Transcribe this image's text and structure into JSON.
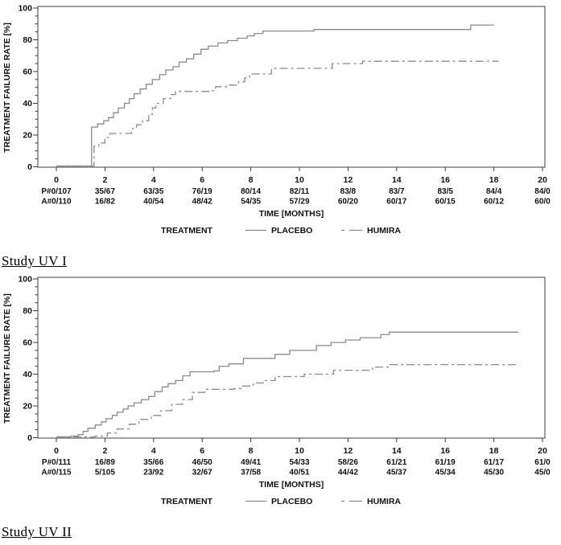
{
  "page": {
    "background": "#ffffff"
  },
  "colors": {
    "curve": "#8a8a8a",
    "axis": "#3c3c3c",
    "text": "#111111"
  },
  "chart_data": [
    {
      "type": "line",
      "subtype": "kaplan-meier-step",
      "caption": "Study UV I",
      "xlabel": "TIME [MONTHS]",
      "ylabel": "TREATMENT FAILURE RATE [%]",
      "xlim": [
        -0.8,
        20.8
      ],
      "ylim": [
        0,
        100
      ],
      "x_ticks": [
        0,
        2,
        4,
        6,
        8,
        10,
        12,
        14,
        16,
        18,
        20
      ],
      "y_ticks": [
        0,
        20,
        40,
        60,
        80,
        100
      ],
      "y_minor_tick_step": 5,
      "grid": false,
      "legend_title": "TREATMENT",
      "legend_position": "bottom",
      "series": [
        {
          "name": "PLACEBO",
          "style": "solid",
          "color": "#8a8a8a",
          "step_points": [
            [
              0,
              0.5
            ],
            [
              1.4,
              0.5
            ],
            [
              1.45,
              25
            ],
            [
              1.7,
              27
            ],
            [
              1.95,
              29
            ],
            [
              2.15,
              31
            ],
            [
              2.35,
              34
            ],
            [
              2.55,
              37
            ],
            [
              2.8,
              40
            ],
            [
              3.0,
              43
            ],
            [
              3.2,
              46
            ],
            [
              3.45,
              49
            ],
            [
              3.7,
              52
            ],
            [
              3.95,
              55
            ],
            [
              4.25,
              58
            ],
            [
              4.5,
              61
            ],
            [
              4.8,
              63
            ],
            [
              5.05,
              66
            ],
            [
              5.35,
              68
            ],
            [
              5.65,
              71
            ],
            [
              5.95,
              74
            ],
            [
              6.25,
              76
            ],
            [
              6.65,
              78
            ],
            [
              7.05,
              79.5
            ],
            [
              7.45,
              81
            ],
            [
              7.85,
              82.5
            ],
            [
              8.15,
              84
            ],
            [
              8.5,
              85.5
            ],
            [
              10.6,
              86.5
            ],
            [
              17.05,
              89.3
            ],
            [
              18.0,
              89.3
            ]
          ]
        },
        {
          "name": "HUMIRA",
          "style": "dash-dot",
          "color": "#8a8a8a",
          "step_points": [
            [
              0,
              0.5
            ],
            [
              1.5,
              0.5
            ],
            [
              1.55,
              13
            ],
            [
              1.75,
              15
            ],
            [
              2.0,
              18.5
            ],
            [
              2.2,
              21
            ],
            [
              2.95,
              21
            ],
            [
              3.1,
              24
            ],
            [
              3.3,
              26.5
            ],
            [
              3.55,
              29
            ],
            [
              3.8,
              33
            ],
            [
              3.95,
              37
            ],
            [
              4.1,
              40
            ],
            [
              4.4,
              43
            ],
            [
              4.7,
              45.5
            ],
            [
              4.9,
              47.5
            ],
            [
              6.3,
              48
            ],
            [
              6.55,
              50.5
            ],
            [
              7.0,
              51.5
            ],
            [
              7.5,
              53.5
            ],
            [
              7.75,
              56
            ],
            [
              7.95,
              58.5
            ],
            [
              8.85,
              62
            ],
            [
              11.35,
              65
            ],
            [
              12.6,
              66.5
            ],
            [
              18.2,
              66.5
            ]
          ]
        }
      ],
      "at_risk_rows": [
        {
          "name": "placebo-at-risk",
          "values": [
            "P#0/107",
            "35/67",
            "63/35",
            "76/19",
            "80/14",
            "82/11",
            "83/8",
            "83/7",
            "83/5",
            "84/4",
            "84/0"
          ]
        },
        {
          "name": "humira-at-risk",
          "values": [
            "A#0/110",
            "16/82",
            "40/54",
            "48/42",
            "54/35",
            "57/29",
            "60/20",
            "60/17",
            "60/15",
            "60/12",
            "60/0"
          ]
        }
      ]
    },
    {
      "type": "line",
      "subtype": "kaplan-meier-step",
      "caption": "Study UV II",
      "xlabel": "TIME [MONTHS]",
      "ylabel": "TREATMENT FAILURE RATE [%]",
      "xlim": [
        -0.8,
        20.8
      ],
      "ylim": [
        0,
        100
      ],
      "x_ticks": [
        0,
        2,
        4,
        6,
        8,
        10,
        12,
        14,
        16,
        18,
        20
      ],
      "y_ticks": [
        0,
        20,
        40,
        60,
        80,
        100
      ],
      "y_minor_tick_step": 5,
      "grid": false,
      "legend_title": "TREATMENT",
      "legend_position": "bottom",
      "series": [
        {
          "name": "PLACEBO",
          "style": "solid",
          "color": "#8a8a8a",
          "step_points": [
            [
              0,
              0.5
            ],
            [
              0.6,
              1
            ],
            [
              0.9,
              2
            ],
            [
              1.1,
              4
            ],
            [
              1.3,
              6
            ],
            [
              1.6,
              8
            ],
            [
              1.85,
              10
            ],
            [
              2.05,
              12
            ],
            [
              2.3,
              14
            ],
            [
              2.5,
              16
            ],
            [
              2.75,
              18
            ],
            [
              2.95,
              20
            ],
            [
              3.2,
              22
            ],
            [
              3.5,
              24
            ],
            [
              3.8,
              26
            ],
            [
              4.05,
              29
            ],
            [
              4.35,
              32
            ],
            [
              4.6,
              34
            ],
            [
              4.9,
              36
            ],
            [
              5.2,
              39
            ],
            [
              5.5,
              41.5
            ],
            [
              6.5,
              42
            ],
            [
              6.7,
              45
            ],
            [
              7.1,
              46.5
            ],
            [
              7.7,
              50
            ],
            [
              9.0,
              52.5
            ],
            [
              9.6,
              55
            ],
            [
              10.7,
              58
            ],
            [
              11.3,
              60
            ],
            [
              11.9,
              61.5
            ],
            [
              12.5,
              63
            ],
            [
              13.35,
              65
            ],
            [
              13.7,
              66.5
            ],
            [
              19.0,
              66.5
            ]
          ]
        },
        {
          "name": "HUMIRA",
          "style": "dash-dot",
          "color": "#8a8a8a",
          "step_points": [
            [
              0,
              0.5
            ],
            [
              1.6,
              1
            ],
            [
              2.1,
              3
            ],
            [
              2.5,
              5.5
            ],
            [
              3.0,
              8.5
            ],
            [
              3.4,
              11.5
            ],
            [
              3.9,
              14
            ],
            [
              4.3,
              17
            ],
            [
              4.75,
              21
            ],
            [
              5.2,
              24
            ],
            [
              5.6,
              28.5
            ],
            [
              6.1,
              30.5
            ],
            [
              7.3,
              31
            ],
            [
              7.6,
              32.5
            ],
            [
              8.1,
              34.5
            ],
            [
              8.5,
              36
            ],
            [
              9.0,
              38.5
            ],
            [
              10.2,
              40
            ],
            [
              11.4,
              42.5
            ],
            [
              13.0,
              44.5
            ],
            [
              13.7,
              46
            ],
            [
              19.0,
              46
            ]
          ]
        }
      ],
      "at_risk_rows": [
        {
          "name": "placebo-at-risk",
          "values": [
            "P#0/111",
            "16/89",
            "35/66",
            "46/50",
            "49/41",
            "54/33",
            "58/26",
            "61/21",
            "61/19",
            "61/17",
            "61/0"
          ]
        },
        {
          "name": "humira-at-risk",
          "values": [
            "A#0/115",
            "5/105",
            "23/92",
            "32/67",
            "37/58",
            "40/51",
            "44/42",
            "45/37",
            "45/34",
            "45/30",
            "45/0"
          ]
        }
      ]
    }
  ]
}
